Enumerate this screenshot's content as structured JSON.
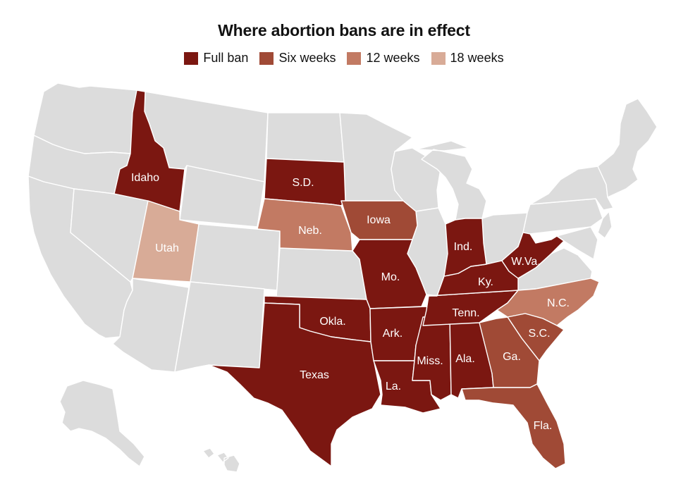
{
  "title": "Where abortion bans are in effect",
  "colors": {
    "full_ban": "#7b1711",
    "six_weeks": "#a04a36",
    "twelve_weeks": "#c27a63",
    "eighteen_weeks": "#d8ab97",
    "no_ban": "#dcdcdc"
  },
  "legend": [
    {
      "label": "Full ban",
      "color": "#7b1711"
    },
    {
      "label": "Six weeks",
      "color": "#a04a36"
    },
    {
      "label": "12 weeks",
      "color": "#c27a63"
    },
    {
      "label": "18 weeks",
      "color": "#d8ab97"
    }
  ],
  "states": {
    "idaho": {
      "label": "Idaho",
      "category": "Full ban"
    },
    "south_dakota": {
      "label": "S.D.",
      "category": "Full ban"
    },
    "nebraska": {
      "label": "Neb.",
      "category": "12 weeks"
    },
    "iowa": {
      "label": "Iowa",
      "category": "Six weeks"
    },
    "utah": {
      "label": "Utah",
      "category": "18 weeks"
    },
    "indiana": {
      "label": "Ind.",
      "category": "Full ban"
    },
    "west_virginia": {
      "label": "W.Va.",
      "category": "Full ban"
    },
    "missouri": {
      "label": "Mo.",
      "category": "Full ban"
    },
    "kentucky": {
      "label": "Ky.",
      "category": "Full ban"
    },
    "north_carolina": {
      "label": "N.C.",
      "category": "12 weeks"
    },
    "oklahoma": {
      "label": "Okla.",
      "category": "Full ban"
    },
    "arkansas": {
      "label": "Ark.",
      "category": "Full ban"
    },
    "tennessee": {
      "label": "Tenn.",
      "category": "Full ban"
    },
    "south_carolina": {
      "label": "S.C.",
      "category": "Six weeks"
    },
    "georgia": {
      "label": "Ga.",
      "category": "Six weeks"
    },
    "mississippi": {
      "label": "Miss.",
      "category": "Full ban"
    },
    "alabama": {
      "label": "Ala.",
      "category": "Full ban"
    },
    "texas": {
      "label": "Texas",
      "category": "Full ban"
    },
    "louisiana": {
      "label": "La.",
      "category": "Full ban"
    },
    "florida": {
      "label": "Fla.",
      "category": "Six weeks"
    }
  }
}
